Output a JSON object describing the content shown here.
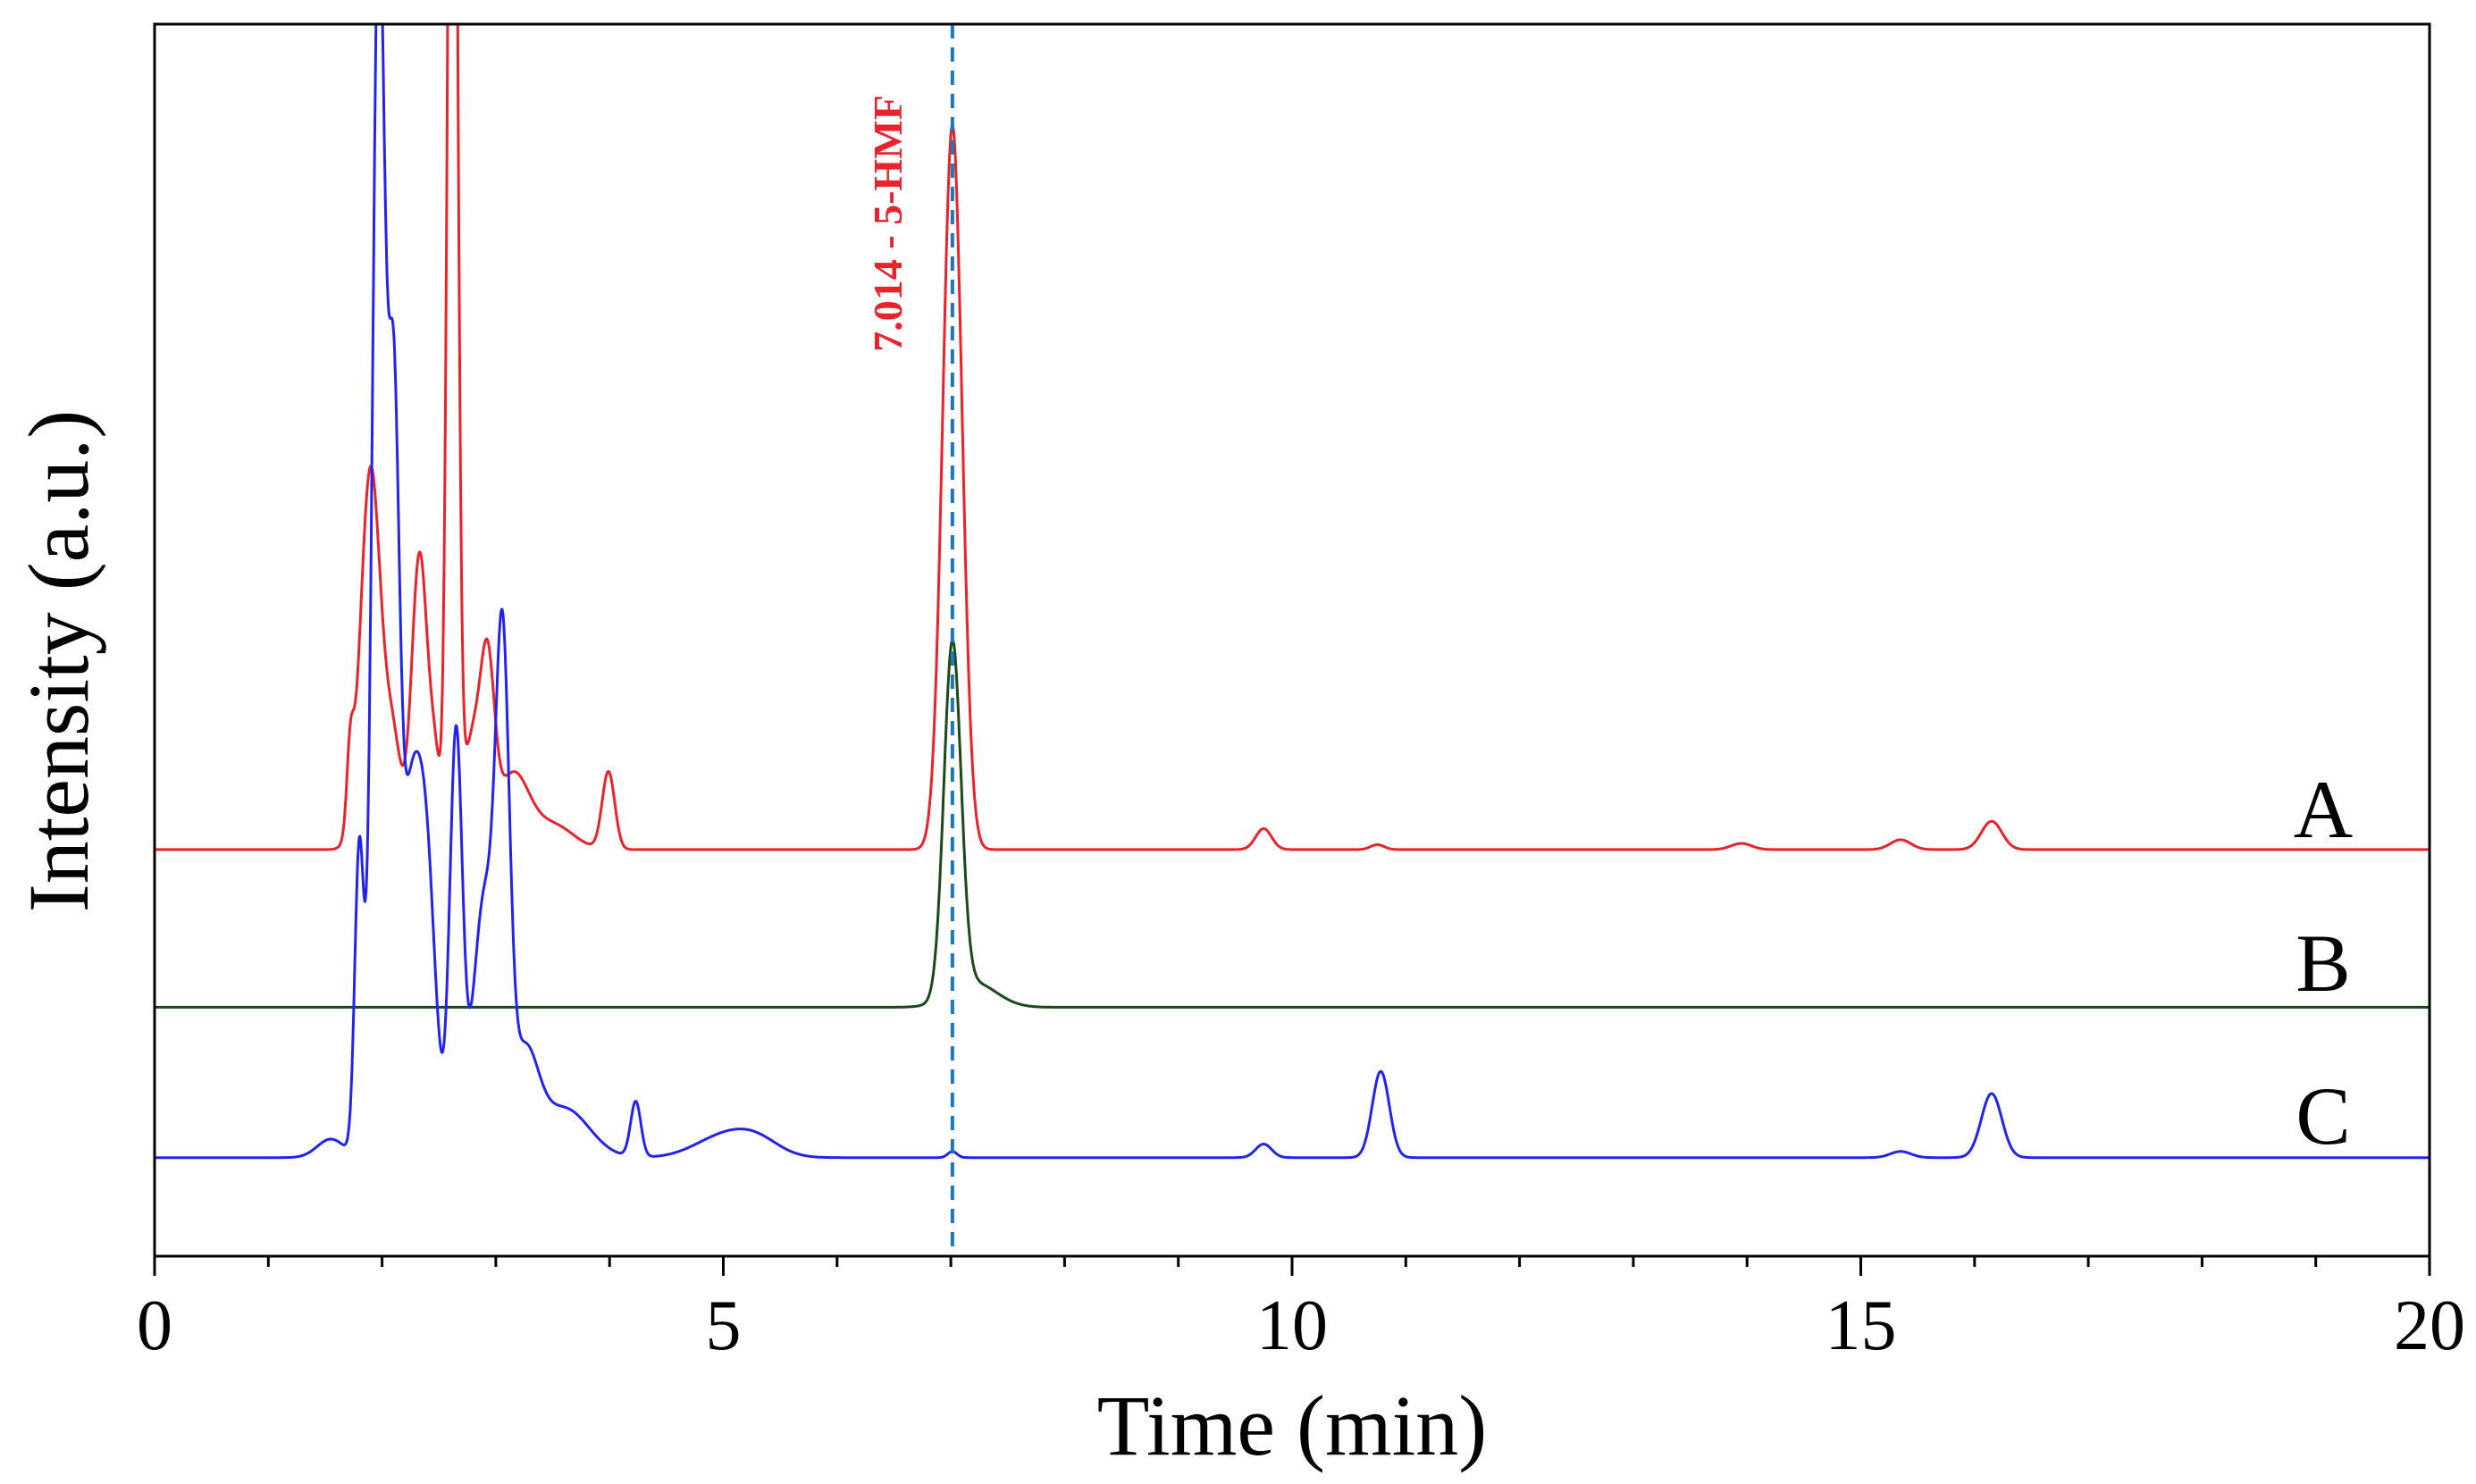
{
  "chart_data": {
    "type": "line",
    "title": "",
    "xlabel": "Time (min)",
    "ylabel": "Intensity (a.u.)",
    "xlim": [
      0,
      20
    ],
    "ylim": [
      0,
      1
    ],
    "x_ticks": [
      0,
      5,
      10,
      15,
      20
    ],
    "x_tick_labels": [
      "0",
      "5",
      "10",
      "15",
      "20"
    ],
    "x_minor_step": 1,
    "y_tick_labels_shown": false,
    "grid": false,
    "annotations": [
      {
        "label": "7.014 - 5-HMF",
        "x": 7.014,
        "style": "dashed vertical line",
        "color": "#1f77b4"
      }
    ],
    "series": [
      {
        "name": "A",
        "color": "#e8232b",
        "baseline": 0.33,
        "peaks": [
          {
            "time": 1.72,
            "height": 0.06,
            "width": 0.03
          },
          {
            "time": 1.9,
            "height": 0.31,
            "width": 0.09
          },
          {
            "time": 2.1,
            "height": 0.08,
            "width": 0.07
          },
          {
            "time": 2.33,
            "height": 0.24,
            "width": 0.07
          },
          {
            "time": 2.47,
            "height": 0.06,
            "width": 0.05
          },
          {
            "time": 2.62,
            "height": 1.2,
            "width": 0.04
          },
          {
            "time": 2.8,
            "height": 0.09,
            "width": 0.09
          },
          {
            "time": 2.93,
            "height": 0.12,
            "width": 0.06
          },
          {
            "time": 3.15,
            "height": 0.06,
            "width": 0.14
          },
          {
            "time": 3.5,
            "height": 0.02,
            "width": 0.18
          },
          {
            "time": 3.99,
            "height": 0.063,
            "width": 0.055
          },
          {
            "time": 7.014,
            "height": 0.588,
            "width": 0.085
          },
          {
            "time": 9.75,
            "height": 0.017,
            "width": 0.07
          },
          {
            "time": 10.75,
            "height": 0.004,
            "width": 0.06
          },
          {
            "time": 13.95,
            "height": 0.005,
            "width": 0.09
          },
          {
            "time": 15.35,
            "height": 0.008,
            "width": 0.09
          },
          {
            "time": 16.15,
            "height": 0.023,
            "width": 0.09
          }
        ]
      },
      {
        "name": "B",
        "color": "#1a4a1a",
        "baseline": 0.202,
        "peaks": [
          {
            "time": 7.014,
            "height": 0.285,
            "width": 0.075
          },
          {
            "time": 7.2,
            "height": 0.02,
            "width": 0.2
          }
        ]
      },
      {
        "name": "C",
        "color": "#2323f0",
        "baseline": 0.08,
        "peaks": [
          {
            "time": 1.55,
            "height": 0.015,
            "width": 0.12
          },
          {
            "time": 1.8,
            "height": 0.25,
            "width": 0.04
          },
          {
            "time": 1.97,
            "height": 1.0,
            "width": 0.055
          },
          {
            "time": 2.1,
            "height": 0.52,
            "width": 0.05
          },
          {
            "time": 2.25,
            "height": 0.28,
            "width": 0.1
          },
          {
            "time": 2.4,
            "height": 0.18,
            "width": 0.08
          },
          {
            "time": 2.65,
            "height": 0.34,
            "width": 0.055
          },
          {
            "time": 2.9,
            "height": 0.21,
            "width": 0.1
          },
          {
            "time": 3.06,
            "height": 0.36,
            "width": 0.06
          },
          {
            "time": 3.25,
            "height": 0.08,
            "width": 0.12
          },
          {
            "time": 3.6,
            "height": 0.04,
            "width": 0.22
          },
          {
            "time": 4.23,
            "height": 0.045,
            "width": 0.045
          },
          {
            "time": 5.0,
            "height": 0.017,
            "width": 0.25
          },
          {
            "time": 5.3,
            "height": 0.012,
            "width": 0.2
          },
          {
            "time": 7.014,
            "height": 0.005,
            "width": 0.04
          },
          {
            "time": 9.75,
            "height": 0.011,
            "width": 0.07
          },
          {
            "time": 10.78,
            "height": 0.07,
            "width": 0.075
          },
          {
            "time": 15.35,
            "height": 0.005,
            "width": 0.09
          },
          {
            "time": 16.15,
            "height": 0.052,
            "width": 0.09
          }
        ]
      }
    ]
  }
}
